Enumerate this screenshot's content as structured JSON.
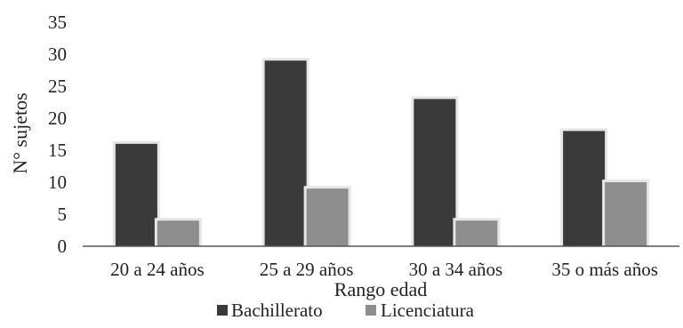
{
  "chart_data": {
    "type": "bar",
    "categories": [
      "20 a 24 años",
      "25 a 29 años",
      "30 a 34 años",
      "35 o más años"
    ],
    "series": [
      {
        "name": "Bachillerato",
        "values": [
          16,
          29,
          23,
          18
        ],
        "color": "#3a3a3a"
      },
      {
        "name": "Licenciatura",
        "values": [
          4,
          9,
          4,
          10
        ],
        "color": "#8e8e8e"
      }
    ],
    "xlabel": "Rango edad",
    "ylabel": "N° sujetos",
    "ylim": [
      0,
      35
    ],
    "yticks": [
      "0",
      "5",
      "10",
      "15",
      "20",
      "25",
      "30",
      "35"
    ],
    "grid": false,
    "legend_position": "bottom"
  }
}
